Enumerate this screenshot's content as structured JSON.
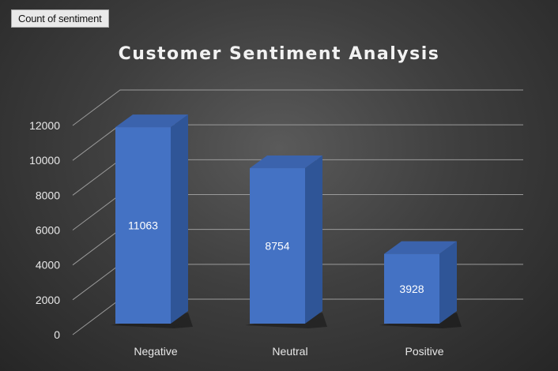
{
  "field_button": {
    "label": "Count of sentiment"
  },
  "chart_data": {
    "type": "bar",
    "title": "Customer Sentiment Analysis",
    "categories": [
      "Negative",
      "Neutral",
      "Positive"
    ],
    "values": [
      11063,
      8754,
      3928
    ],
    "data_labels": [
      "11063",
      "8754",
      "3928"
    ],
    "ylim": [
      0,
      12000
    ],
    "yticks": [
      0,
      2000,
      4000,
      6000,
      8000,
      10000,
      12000
    ],
    "grid": true,
    "legend": "none",
    "colors": {
      "bar": "#4472c4",
      "bar_side": "#2f5597",
      "bar_top": "#3b63ad",
      "grid": "#9a9a9a"
    }
  }
}
